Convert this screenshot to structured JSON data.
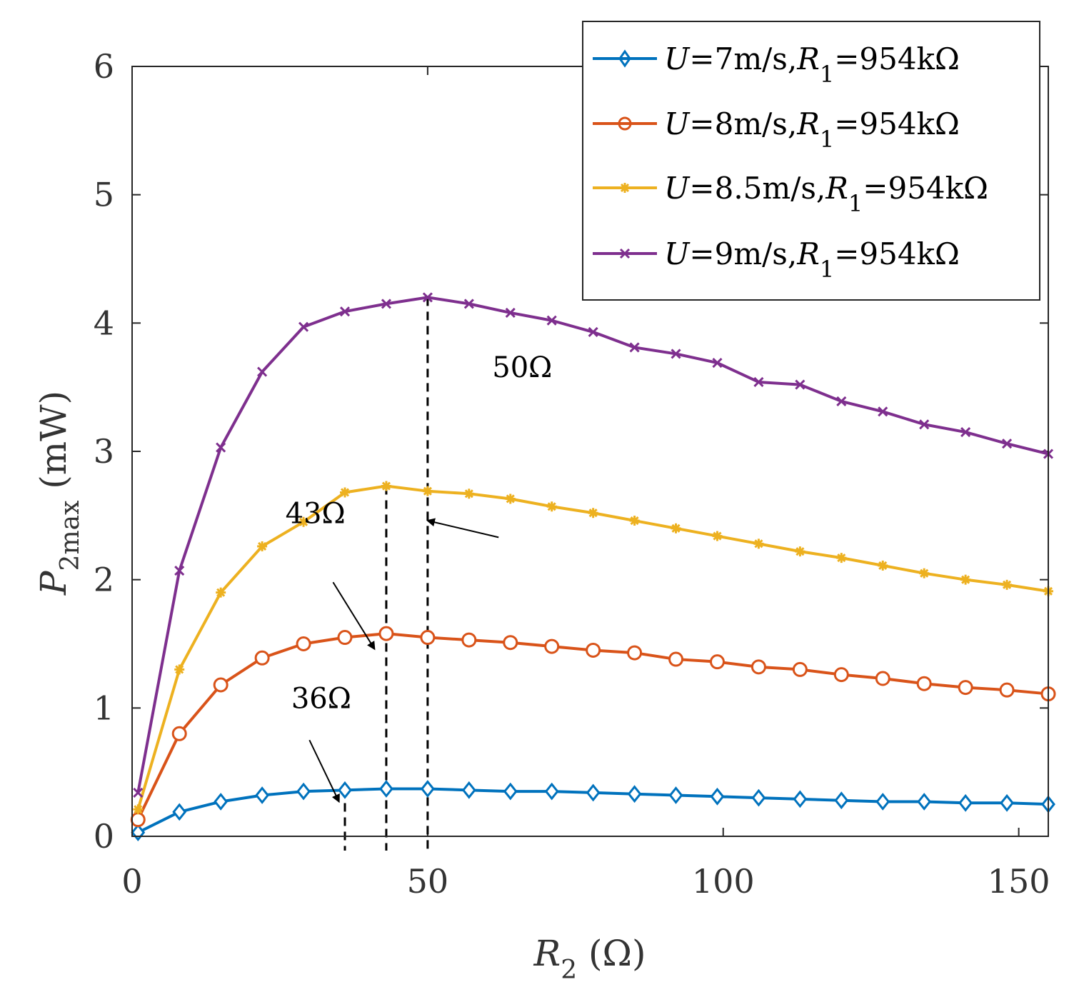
{
  "chart_data": {
    "type": "line",
    "xlabel": {
      "symbol": "R",
      "sub": "2",
      "unit": " (Ω)"
    },
    "ylabel": {
      "symbol": "P",
      "sub": "2max",
      "unit": " (mW)"
    },
    "xlim": [
      0,
      155
    ],
    "ylim": [
      0,
      6
    ],
    "xticks": [
      0,
      50,
      100,
      150
    ],
    "yticks": [
      0,
      1,
      2,
      3,
      4,
      5,
      6
    ],
    "grid": false,
    "legend_position": "top-right",
    "x": [
      1,
      8,
      15,
      22,
      29,
      36,
      43,
      50,
      57,
      64,
      71,
      78,
      85,
      92,
      99,
      106,
      113,
      120,
      127,
      134,
      141,
      148,
      155
    ],
    "series": [
      {
        "name": "U=7m/s,R1=954kΩ",
        "label_parts": {
          "u": "U",
          "speed": "=7m/s,",
          "r": "R",
          "sub": "1",
          "rest": "=954kΩ"
        },
        "color": "#0072BD",
        "marker": "diamond",
        "values": [
          0.03,
          0.19,
          0.27,
          0.32,
          0.35,
          0.36,
          0.37,
          0.37,
          0.36,
          0.35,
          0.35,
          0.34,
          0.33,
          0.32,
          0.31,
          0.3,
          0.29,
          0.28,
          0.27,
          0.27,
          0.26,
          0.26,
          0.25
        ]
      },
      {
        "name": "U=8m/s,R1=954kΩ",
        "label_parts": {
          "u": "U",
          "speed": "=8m/s,",
          "r": "R",
          "sub": "1",
          "rest": "=954kΩ"
        },
        "color": "#D95319",
        "marker": "circle",
        "values": [
          0.13,
          0.8,
          1.18,
          1.39,
          1.5,
          1.55,
          1.58,
          1.55,
          1.53,
          1.51,
          1.48,
          1.45,
          1.43,
          1.38,
          1.36,
          1.32,
          1.3,
          1.26,
          1.23,
          1.19,
          1.16,
          1.14,
          1.11
        ]
      },
      {
        "name": "U=8.5m/s,R1=954kΩ",
        "label_parts": {
          "u": "U",
          "speed": "=8.5m/s,",
          "r": "R",
          "sub": "1",
          "rest": "=954kΩ"
        },
        "color": "#EDB120",
        "marker": "asterisk",
        "values": [
          0.21,
          1.3,
          1.9,
          2.26,
          2.45,
          2.68,
          2.73,
          2.69,
          2.67,
          2.63,
          2.57,
          2.52,
          2.46,
          2.4,
          2.34,
          2.28,
          2.22,
          2.17,
          2.11,
          2.05,
          2.0,
          1.96,
          1.91
        ]
      },
      {
        "name": "U=9m/s,R1=954kΩ",
        "label_parts": {
          "u": "U",
          "speed": "=9m/s,",
          "r": "R",
          "sub": "1",
          "rest": "=954kΩ"
        },
        "color": "#7E2F8E",
        "marker": "x",
        "values": [
          0.34,
          2.07,
          3.03,
          3.62,
          3.97,
          4.09,
          4.15,
          4.2,
          4.15,
          4.08,
          4.02,
          3.93,
          3.81,
          3.76,
          3.69,
          3.54,
          3.52,
          3.39,
          3.31,
          3.21,
          3.15,
          3.06,
          2.98
        ]
      }
    ],
    "annotations": [
      {
        "text": "36Ω",
        "x_mark": 36,
        "text_at": [
          32,
          1.0
        ],
        "arrow_from": [
          30,
          0.75
        ],
        "arrow_to": [
          35,
          0.27
        ]
      },
      {
        "text": "43Ω",
        "x_mark": 43,
        "text_at": [
          31,
          2.44
        ],
        "arrow_from": [
          34,
          1.98
        ],
        "arrow_to": [
          41,
          1.46
        ]
      },
      {
        "text": "50Ω",
        "x_mark": 50,
        "text_at": [
          66,
          3.58
        ],
        "arrow_from": [
          62,
          2.37
        ],
        "arrow_to": [
          50,
          2.46
        ],
        "arrow_from_actual": [
          62,
          2.33
        ]
      }
    ],
    "dashed_lines": [
      {
        "x": 36,
        "y_top": 0.37
      },
      {
        "x": 43,
        "y_top": 2.73
      },
      {
        "x": 50,
        "y_top": 4.2
      }
    ]
  }
}
